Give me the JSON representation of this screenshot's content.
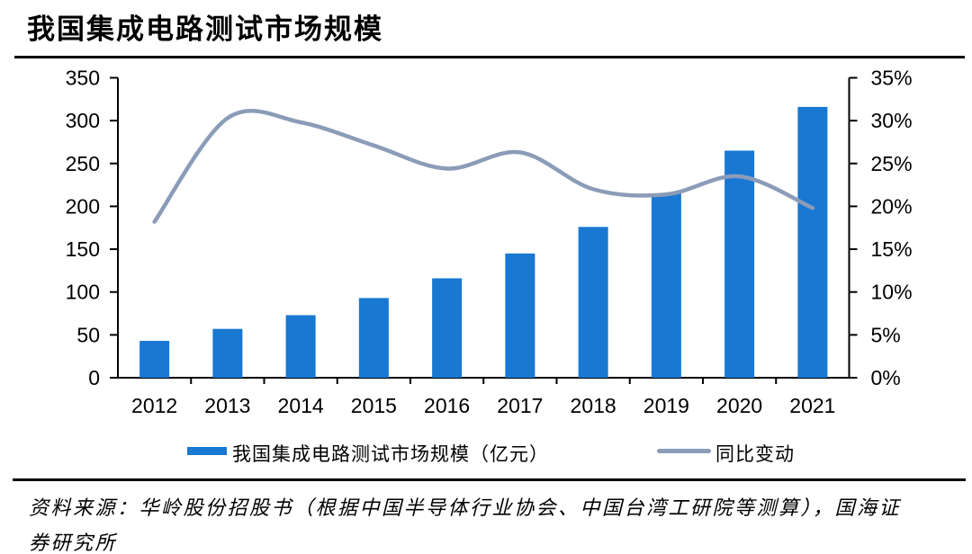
{
  "page": {
    "title": "我国集成电路测试市场规模"
  },
  "legend": {
    "bar_label": "我国集成电路测试市场规模（亿元）",
    "line_label": "同比变动"
  },
  "source": {
    "text": "资料来源：华岭股份招股书（根据中国半导体行业协会、中国台湾工研院等测算），国海证券研究所"
  },
  "colors": {
    "bar": "#1878D2",
    "line": "#8B9CB8",
    "axis": "#000000",
    "text": "#000000"
  },
  "chart_data": {
    "type": "bar",
    "title": "我国集成电路测试市场规模",
    "categories": [
      "2012",
      "2013",
      "2014",
      "2015",
      "2016",
      "2017",
      "2018",
      "2019",
      "2020",
      "2021"
    ],
    "series": [
      {
        "name": "我国集成电路测试市场规模（亿元）",
        "type": "bar",
        "axis": "left",
        "values": [
          43,
          57,
          73,
          93,
          116,
          145,
          176,
          215,
          265,
          316
        ]
      },
      {
        "name": "同比变动",
        "type": "line",
        "axis": "right",
        "unit": "%",
        "values": [
          18.2,
          30.3,
          29.8,
          27.1,
          24.4,
          26.3,
          22.0,
          21.4,
          23.5,
          19.8
        ]
      }
    ],
    "left_axis": {
      "min": 0,
      "max": 350,
      "step": 50,
      "tick_labels": [
        "0",
        "50",
        "100",
        "150",
        "200",
        "250",
        "300",
        "350"
      ]
    },
    "right_axis": {
      "min": 0,
      "max": 35,
      "step": 5,
      "tick_labels": [
        "0%",
        "5%",
        "10%",
        "15%",
        "20%",
        "25%",
        "30%",
        "35%"
      ]
    },
    "grid": false,
    "legend_position": "bottom",
    "smooth_line": true
  }
}
